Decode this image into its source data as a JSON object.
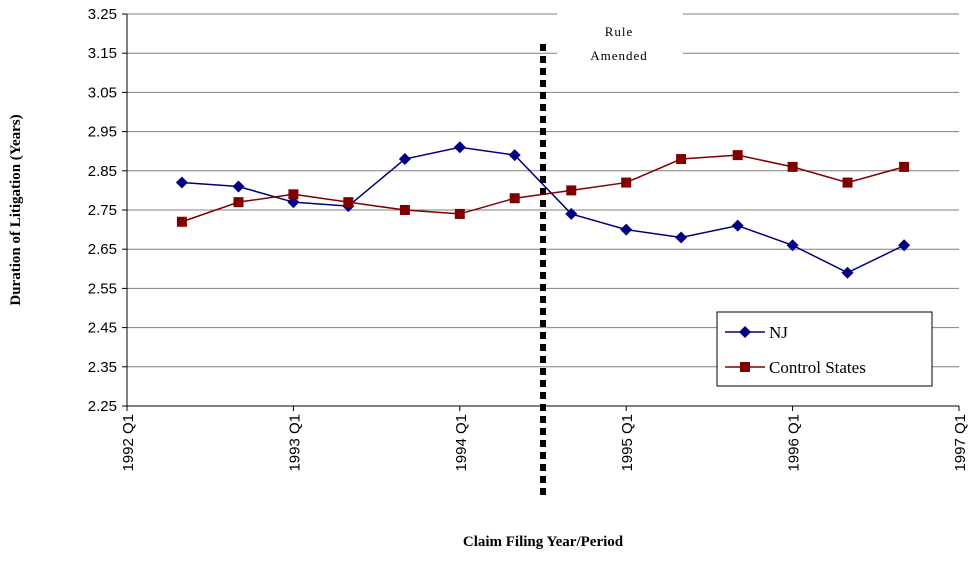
{
  "chart_data": {
    "type": "line",
    "y_label": "Duration of Litigation (Years)",
    "x_label": "Claim Filing Year/Period",
    "x": [
      1992.33,
      1992.67,
      1993,
      1993.33,
      1993.67,
      1994,
      1994.33,
      1994.67,
      1995,
      1995.33,
      1995.67,
      1996,
      1996.33,
      1996.67
    ],
    "series": [
      {
        "name": "NJ",
        "color": "#000080",
        "marker": "diamond",
        "values": [
          2.82,
          2.81,
          2.77,
          2.76,
          2.88,
          2.91,
          2.89,
          2.74,
          2.7,
          2.68,
          2.71,
          2.66,
          2.59,
          2.66
        ]
      },
      {
        "name": "Control States",
        "color": "#800000",
        "marker": "square",
        "values": [
          2.72,
          2.77,
          2.79,
          2.77,
          2.75,
          2.74,
          2.78,
          2.8,
          2.82,
          2.88,
          2.89,
          2.86,
          2.82,
          2.86
        ]
      }
    ],
    "xlim": [
      1992,
      1997
    ],
    "xticks": [
      {
        "value": 1992,
        "label": "1992 Q1"
      },
      {
        "value": 1993,
        "label": "1993 Q1"
      },
      {
        "value": 1994,
        "label": "1994 Q1"
      },
      {
        "value": 1995,
        "label": "1995 Q1"
      },
      {
        "value": 1996,
        "label": "1996 Q1"
      },
      {
        "value": 1997,
        "label": "1997 Q1"
      }
    ],
    "ylim": [
      2.25,
      3.25
    ],
    "yticks": [
      2.25,
      2.35,
      2.45,
      2.55,
      2.65,
      2.75,
      2.85,
      2.95,
      3.05,
      3.15,
      3.25
    ],
    "grid": true,
    "legend": "lower right",
    "annotation": {
      "lines": [
        "Rule",
        "Amended"
      ],
      "x": 1994.5
    }
  }
}
